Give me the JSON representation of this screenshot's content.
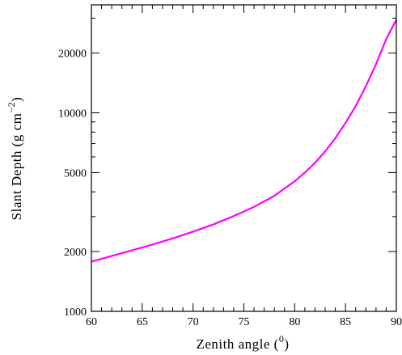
{
  "chart_data": {
    "type": "line",
    "title": "",
    "xlabel": "Zenith angle (",
    "xlabel_sup": "0",
    "xlabel_end": ")",
    "ylabel": "Slant Depth (g cm",
    "ylabel_sup": "−2",
    "ylabel_end": ")",
    "xlim": [
      60,
      90
    ],
    "ylim": [
      1000,
      35000
    ],
    "yscale": "log",
    "grid": false,
    "x_ticks": [
      60,
      65,
      70,
      75,
      80,
      85,
      90
    ],
    "x_tick_labels": [
      "60",
      "65",
      "70",
      "75",
      "80",
      "85",
      "90"
    ],
    "y_ticks": [
      1000,
      2000,
      5000,
      10000,
      20000
    ],
    "y_tick_labels": [
      "1000",
      "2000",
      "5000",
      "10000",
      "20000"
    ],
    "series": [
      {
        "color": "#ff00ff",
        "x": [
          60,
          62,
          64,
          66,
          68,
          70,
          72,
          74,
          75,
          76,
          78,
          80,
          81,
          82,
          83,
          84,
          85,
          86,
          87,
          88,
          89,
          90
        ],
        "y": [
          1780,
          1900,
          2030,
          2170,
          2330,
          2520,
          2740,
          3020,
          3180,
          3360,
          3820,
          4520,
          5000,
          5600,
          6400,
          7450,
          8900,
          10800,
          13600,
          17600,
          23500,
          29500
        ]
      }
    ]
  }
}
